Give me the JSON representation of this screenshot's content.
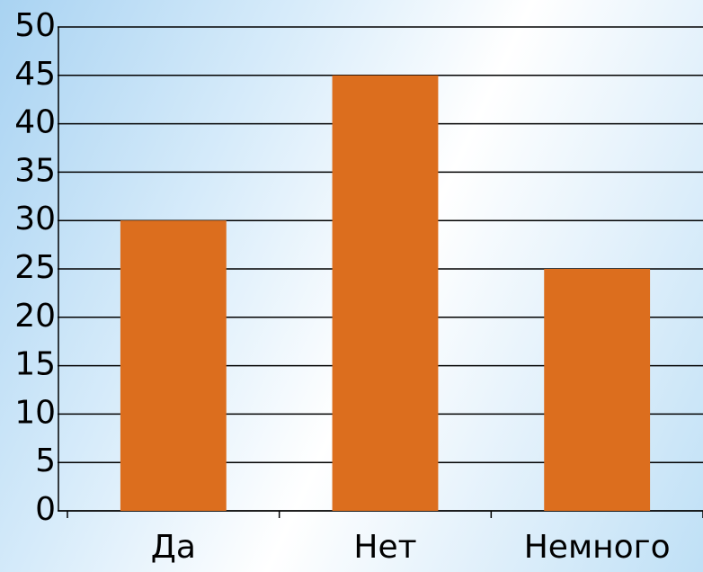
{
  "chart_data": {
    "type": "bar",
    "categories": [
      "Да",
      "Нет",
      "Немного"
    ],
    "values": [
      30,
      45,
      25
    ],
    "color": "#dc6e1e",
    "ylim": [
      0,
      50
    ],
    "yticks": [
      0,
      5,
      10,
      15,
      20,
      25,
      30,
      35,
      40,
      45,
      50
    ],
    "grid": true
  }
}
